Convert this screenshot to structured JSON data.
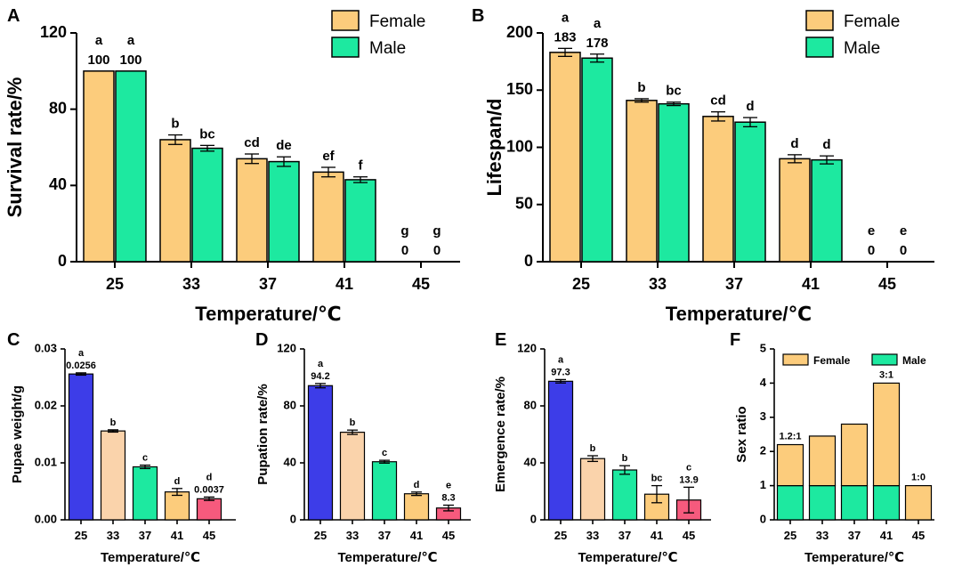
{
  "colors": {
    "female": "#FCCC7C",
    "male": "#1DE9A0",
    "c25": "#3D3DE8",
    "c33": "#FAD3AB",
    "c37": "#1DE9A0",
    "c41": "#FCCC7C",
    "c45": "#F65A7D"
  },
  "chart_data": [
    {
      "id": "A",
      "panel": "A",
      "type": "bar",
      "xlabel": "Temperature/℃",
      "ylabel": "Survival rate/%",
      "ylim": [
        0,
        120
      ],
      "yticks": [
        "0",
        "40",
        "80",
        "120"
      ],
      "categories": [
        "25",
        "33",
        "37",
        "41",
        "45"
      ],
      "legend": {
        "position": "top-right",
        "entries": [
          "Female",
          "Male"
        ]
      },
      "series": [
        {
          "name": "Female",
          "values": [
            100,
            64,
            54,
            47,
            0
          ],
          "errors": [
            0,
            2.5,
            2.5,
            2.5,
            0
          ],
          "letters": [
            "a",
            "b",
            "cd",
            "ef",
            "g"
          ],
          "value_labels": [
            "100",
            "",
            "",
            "",
            "0"
          ]
        },
        {
          "name": "Male",
          "values": [
            100,
            59.5,
            52.5,
            43,
            0
          ],
          "errors": [
            0,
            1.5,
            2.5,
            1.5,
            0
          ],
          "letters": [
            "a",
            "bc",
            "de",
            "f",
            "g"
          ],
          "value_labels": [
            "100",
            "",
            "",
            "",
            "0"
          ]
        }
      ]
    },
    {
      "id": "B",
      "panel": "B",
      "type": "bar",
      "xlabel": "Temperature/℃",
      "ylabel": "Lifespan/d",
      "ylim": [
        0,
        200
      ],
      "yticks": [
        "0",
        "50",
        "100",
        "150",
        "200"
      ],
      "categories": [
        "25",
        "33",
        "37",
        "41",
        "45"
      ],
      "legend": {
        "position": "top-right",
        "entries": [
          "Female",
          "Male"
        ]
      },
      "series": [
        {
          "name": "Female",
          "values": [
            183,
            141,
            127,
            90,
            0
          ],
          "errors": [
            3.5,
            1.5,
            4,
            3.5,
            0
          ],
          "letters": [
            "a",
            "b",
            "cd",
            "d",
            "e"
          ],
          "value_labels": [
            "183",
            "",
            "",
            "",
            "0"
          ]
        },
        {
          "name": "Male",
          "values": [
            178,
            138,
            122,
            89,
            0
          ],
          "errors": [
            3.5,
            1.5,
            4,
            3.5,
            0
          ],
          "letters": [
            "a",
            "bc",
            "d",
            "d",
            "e"
          ],
          "value_labels": [
            "178",
            "",
            "",
            "",
            "0"
          ]
        }
      ]
    },
    {
      "id": "C",
      "panel": "C",
      "type": "bar",
      "xlabel": "Temperature/℃",
      "ylabel": "Pupae weight/g",
      "ylim": [
        0,
        0.03
      ],
      "yticks": [
        "0.00",
        "0.01",
        "0.02",
        "0.03"
      ],
      "categories": [
        "25",
        "33",
        "37",
        "41",
        "45"
      ],
      "bar_colors": [
        "c25",
        "c33",
        "c37",
        "c41",
        "c45"
      ],
      "series": [
        {
          "name": "Pupae weight",
          "values": [
            0.0256,
            0.0156,
            0.0093,
            0.0049,
            0.0037
          ],
          "errors": [
            0.0002,
            0.0002,
            0.0003,
            0.0006,
            0.0003
          ],
          "letters": [
            "a",
            "b",
            "c",
            "d",
            "d"
          ],
          "value_labels": [
            "0.0256",
            "",
            "",
            "",
            "0.0037"
          ]
        }
      ]
    },
    {
      "id": "D",
      "panel": "D",
      "type": "bar",
      "xlabel": "Temperature/℃",
      "ylabel": "Pupation rate/%",
      "ylim": [
        0,
        120
      ],
      "yticks": [
        "0",
        "40",
        "80",
        "120"
      ],
      "categories": [
        "25",
        "33",
        "37",
        "41",
        "45"
      ],
      "bar_colors": [
        "c25",
        "c33",
        "c37",
        "c41",
        "c45"
      ],
      "series": [
        {
          "name": "Pupation rate",
          "values": [
            94.2,
            61.5,
            40.8,
            18.3,
            8.3
          ],
          "errors": [
            1.5,
            1.5,
            1,
            1.2,
            2
          ],
          "letters": [
            "a",
            "b",
            "c",
            "d",
            "e"
          ],
          "value_labels": [
            "94.2",
            "",
            "",
            "",
            "8.3"
          ]
        }
      ]
    },
    {
      "id": "E",
      "panel": "E",
      "type": "bar",
      "xlabel": "Temperature/℃",
      "ylabel": "Emergence rate/%",
      "ylim": [
        0,
        120
      ],
      "yticks": [
        "0",
        "40",
        "80",
        "120"
      ],
      "categories": [
        "25",
        "33",
        "37",
        "41",
        "45"
      ],
      "bar_colors": [
        "c25",
        "c33",
        "c37",
        "c41",
        "c45"
      ],
      "series": [
        {
          "name": "Emergence rate",
          "values": [
            97.3,
            43,
            35,
            18,
            13.9
          ],
          "errors": [
            1.2,
            2,
            3,
            6,
            9
          ],
          "letters": [
            "a",
            "b",
            "b",
            "bc",
            "c"
          ],
          "value_labels": [
            "97.3",
            "",
            "",
            "",
            "13.9"
          ]
        }
      ]
    },
    {
      "id": "F",
      "panel": "F",
      "type": "stacked-bar",
      "xlabel": "Temperature/℃",
      "ylabel": "Sex ratio",
      "ylim": [
        0,
        5
      ],
      "yticks": [
        "0",
        "1",
        "2",
        "3",
        "4",
        "5"
      ],
      "categories": [
        "25",
        "33",
        "37",
        "41",
        "45"
      ],
      "legend": {
        "position": "top",
        "entries": [
          "Female",
          "Male"
        ]
      },
      "series": [
        {
          "name": "Male",
          "values": [
            1,
            1,
            1,
            1,
            0
          ]
        },
        {
          "name": "Female",
          "values": [
            1.2,
            1.45,
            1.8,
            3,
            1
          ]
        }
      ],
      "top_labels": [
        "1.2:1",
        "",
        "",
        "3:1",
        "1:0"
      ]
    }
  ]
}
